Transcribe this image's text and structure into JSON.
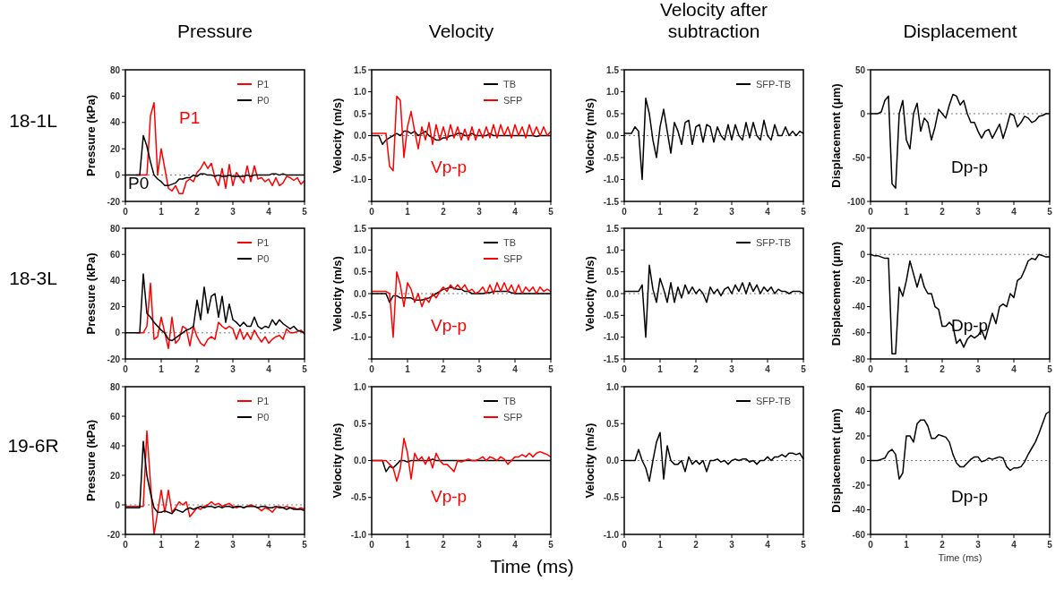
{
  "chart_data": [
    {
      "type": "line",
      "title": "Pressure",
      "ylabel": "Pressure (kPa)",
      "annotations": [
        "18-1L",
        "P0",
        "P1"
      ],
      "x": [
        0,
        0.1,
        0.2,
        0.3,
        0.4,
        0.5,
        0.6,
        0.7,
        0.8,
        0.9,
        1,
        1.1,
        1.2,
        1.3,
        1.4,
        1.5,
        1.6,
        1.7,
        1.8,
        1.9,
        2,
        2.1,
        2.2,
        2.3,
        2.4,
        2.5,
        2.6,
        2.7,
        2.8,
        2.9,
        3,
        3.1,
        3.2,
        3.3,
        3.4,
        3.5,
        3.6,
        3.7,
        3.8,
        3.9,
        4,
        4.1,
        4.2,
        4.3,
        4.4,
        4.5,
        4.6,
        4.7,
        4.8,
        4.9,
        5
      ],
      "xlim": [
        0,
        5
      ],
      "xticks": [
        0,
        1,
        2,
        3,
        4,
        5
      ],
      "ylim": [
        -20,
        80
      ],
      "yticks": [
        -20,
        0,
        20,
        40,
        60,
        80
      ],
      "legend": "top right",
      "ref_lines": [
        {
          "axis": "y",
          "value": 0,
          "line_style": "dotted"
        }
      ],
      "series": [
        {
          "name": "P1",
          "color": "#ff0000",
          "values": [
            null,
            null,
            null,
            0,
            0,
            0,
            0,
            45,
            55,
            0,
            20,
            5,
            -10,
            -12,
            -8,
            -14,
            -14,
            -5,
            -3,
            -5,
            2,
            5,
            10,
            5,
            9,
            -2,
            -8,
            5,
            -10,
            8,
            -8,
            2,
            -2,
            -6,
            7,
            -5,
            7,
            -3,
            -2,
            -5,
            -3,
            -8,
            -2,
            -8,
            -6,
            -1,
            -2,
            -4,
            -2,
            -7,
            -4
          ]
        },
        {
          "name": "P0",
          "color": "#000000",
          "values": [
            0,
            0,
            0,
            0,
            0,
            30,
            22,
            10,
            0,
            -3,
            -5,
            -8,
            -8,
            -7,
            -6,
            -3,
            -3,
            -2,
            -2,
            0,
            -1,
            1,
            1,
            0,
            0,
            -1,
            0,
            -1,
            -1,
            0,
            -1,
            -1,
            -1,
            -1,
            0,
            -1,
            0,
            0,
            0,
            0,
            0,
            1,
            1,
            0,
            1,
            0,
            0,
            0,
            0,
            0,
            0
          ]
        }
      ]
    },
    {
      "type": "line",
      "title": "Velocity",
      "ylabel": "Velocity (m/s)",
      "annotations": [
        "Vp-p"
      ],
      "x": [
        0,
        0.1,
        0.2,
        0.3,
        0.4,
        0.5,
        0.6,
        0.7,
        0.8,
        0.9,
        1,
        1.1,
        1.2,
        1.3,
        1.4,
        1.5,
        1.6,
        1.7,
        1.8,
        1.9,
        2,
        2.1,
        2.2,
        2.3,
        2.4,
        2.5,
        2.6,
        2.7,
        2.8,
        2.9,
        3,
        3.1,
        3.2,
        3.3,
        3.4,
        3.5,
        3.6,
        3.7,
        3.8,
        3.9,
        4,
        4.1,
        4.2,
        4.3,
        4.4,
        4.5,
        4.6,
        4.7,
        4.8,
        4.9,
        5
      ],
      "xlim": [
        0,
        5
      ],
      "xticks": [
        0,
        1,
        2,
        3,
        4,
        5
      ],
      "ylim": [
        -1.5,
        1.5
      ],
      "yticks": [
        {
          "value": -1.5,
          "label": null
        },
        {
          "value": -1,
          "label": "-1.0"
        },
        {
          "value": -0.5,
          "label": "-0.5"
        },
        {
          "value": 0,
          "label": "0.0"
        },
        {
          "value": 0.5,
          "label": "0.5"
        },
        {
          "value": 1,
          "label": "1.0"
        },
        {
          "value": 1.5,
          "label": "1.5"
        }
      ],
      "legend": "top right",
      "ref_lines": [
        {
          "axis": "y",
          "value": 0,
          "line_style": "dotted"
        }
      ],
      "series": [
        {
          "name": "TB",
          "color": "#000000",
          "values": [
            0,
            0,
            0,
            -0.2,
            -0.1,
            -0.05,
            0,
            0.05,
            0,
            0.1,
            0.1,
            0.05,
            0.1,
            0,
            0.05,
            0.1,
            0,
            -0.05,
            -0.1,
            -0.1,
            -0.05,
            -0.05,
            0,
            0,
            0.05,
            0.05,
            0,
            0,
            0.05,
            0,
            0,
            0,
            0,
            0.05,
            0,
            0,
            0,
            0,
            0,
            0,
            0,
            0,
            0,
            0,
            0,
            0,
            -0.02,
            0,
            0,
            0,
            0
          ]
        },
        {
          "name": "SFP",
          "color": "#ff0000",
          "values": [
            0.05,
            0.05,
            0.05,
            0.05,
            0.05,
            -0.7,
            -0.8,
            0.9,
            0.8,
            -0.5,
            0.2,
            0.55,
            0.1,
            -0.3,
            0.2,
            -0.1,
            0.3,
            -0.2,
            0.25,
            -0.1,
            0.2,
            -0.1,
            0.25,
            -0.05,
            0.2,
            -0.1,
            0.15,
            -0.1,
            0.2,
            -0.1,
            0.15,
            -0.05,
            0.2,
            -0.05,
            0.25,
            -0.05,
            0.25,
            0,
            0.2,
            -0.05,
            0.25,
            0,
            0.2,
            -0.05,
            0.25,
            0,
            0.2,
            0,
            0.2,
            0,
            0.1
          ]
        }
      ]
    },
    {
      "type": "line",
      "title": "Velocity after subtraction",
      "ylabel": "Velocity (m/s)",
      "x": [
        0,
        0.1,
        0.2,
        0.3,
        0.4,
        0.5,
        0.6,
        0.7,
        0.8,
        0.9,
        1,
        1.1,
        1.2,
        1.3,
        1.4,
        1.5,
        1.6,
        1.7,
        1.8,
        1.9,
        2,
        2.1,
        2.2,
        2.3,
        2.4,
        2.5,
        2.6,
        2.7,
        2.8,
        2.9,
        3,
        3.1,
        3.2,
        3.3,
        3.4,
        3.5,
        3.6,
        3.7,
        3.8,
        3.9,
        4,
        4.1,
        4.2,
        4.3,
        4.4,
        4.5,
        4.6,
        4.7,
        4.8,
        4.9,
        5
      ],
      "xlim": [
        0,
        5
      ],
      "xticks": [
        0,
        1,
        2,
        3,
        4,
        5
      ],
      "ylim": [
        -1.5,
        1.5
      ],
      "yticks": [
        {
          "value": -1.5,
          "label": "-1.5"
        },
        {
          "value": -1,
          "label": "-1.0"
        },
        {
          "value": -0.5,
          "label": "-0.5"
        },
        {
          "value": 0,
          "label": "0.0"
        },
        {
          "value": 0.5,
          "label": "0.5"
        },
        {
          "value": 1,
          "label": "1.0"
        },
        {
          "value": 1.5,
          "label": "1.5"
        }
      ],
      "legend": "top right",
      "ref_lines": [
        {
          "axis": "y",
          "value": 0,
          "line_style": "dotted"
        }
      ],
      "series": [
        {
          "name": "SFP-TB",
          "color": "#000000",
          "values": [
            0.05,
            0.05,
            0.05,
            0.2,
            0.1,
            -1,
            0.85,
            0.5,
            -0.1,
            -0.5,
            0.2,
            0.6,
            0.1,
            -0.4,
            0.3,
            0.1,
            -0.2,
            0.3,
            0.35,
            -0.2,
            0.2,
            0.25,
            -0.15,
            0.25,
            0.2,
            -0.15,
            0.2,
            0,
            -0.1,
            0.25,
            -0.1,
            0.25,
            0,
            -0.1,
            0.3,
            -0.05,
            0.3,
            0,
            -0.1,
            0.35,
            0,
            -0.1,
            0.25,
            0,
            0,
            0.2,
            0,
            0.1,
            0,
            0.1,
            0.05
          ]
        }
      ]
    },
    {
      "type": "line",
      "title": "Displacement",
      "ylabel": "Displacement (μm)",
      "annotations": [
        "Dp-p"
      ],
      "x": [
        0,
        0.1,
        0.2,
        0.3,
        0.4,
        0.5,
        0.6,
        0.7,
        0.8,
        0.9,
        1,
        1.1,
        1.2,
        1.3,
        1.4,
        1.5,
        1.6,
        1.7,
        1.8,
        1.9,
        2,
        2.1,
        2.2,
        2.3,
        2.4,
        2.5,
        2.6,
        2.7,
        2.8,
        2.9,
        3,
        3.1,
        3.2,
        3.3,
        3.4,
        3.5,
        3.6,
        3.7,
        3.8,
        3.9,
        4,
        4.1,
        4.2,
        4.3,
        4.4,
        4.5,
        4.6,
        4.7,
        4.8,
        4.9,
        5
      ],
      "xlim": [
        0,
        5
      ],
      "xticks": [
        0,
        1,
        2,
        3,
        4,
        5
      ],
      "ylim": [
        -100,
        50
      ],
      "yticks": [
        -100,
        -50,
        0,
        50
      ],
      "ref_lines": [
        {
          "axis": "y",
          "value": 0,
          "line_style": "dotted"
        }
      ],
      "series": [
        {
          "color": "#000000",
          "values": [
            0,
            0,
            0,
            2,
            15,
            20,
            -80,
            -85,
            0,
            15,
            -30,
            -40,
            0,
            12,
            -20,
            -5,
            -10,
            -30,
            -15,
            5,
            0,
            -5,
            10,
            22,
            20,
            10,
            15,
            0,
            -10,
            -10,
            -20,
            -28,
            -20,
            -18,
            -28,
            -20,
            -12,
            -28,
            -15,
            0,
            -2,
            -15,
            -10,
            -3,
            -5,
            -10,
            -8,
            -3,
            -2,
            0,
            0
          ]
        }
      ]
    },
    {
      "type": "line",
      "ylabel": "Pressure (kPa)",
      "annotations": [
        "18-3L"
      ],
      "x": [
        0,
        0.1,
        0.2,
        0.3,
        0.4,
        0.5,
        0.6,
        0.7,
        0.8,
        0.9,
        1,
        1.1,
        1.2,
        1.3,
        1.4,
        1.5,
        1.6,
        1.7,
        1.8,
        1.9,
        2,
        2.1,
        2.2,
        2.3,
        2.4,
        2.5,
        2.6,
        2.7,
        2.8,
        2.9,
        3,
        3.1,
        3.2,
        3.3,
        3.4,
        3.5,
        3.6,
        3.7,
        3.8,
        3.9,
        4,
        4.1,
        4.2,
        4.3,
        4.4,
        4.5,
        4.6,
        4.7,
        4.8,
        4.9,
        5
      ],
      "xlim": [
        0,
        5
      ],
      "xticks": [
        0,
        1,
        2,
        3,
        4,
        5
      ],
      "ylim": [
        -20,
        80
      ],
      "yticks": [
        -20,
        0,
        20,
        40,
        60,
        80
      ],
      "legend": "top right",
      "ref_lines": [
        {
          "axis": "y",
          "value": 0,
          "line_style": "dotted"
        }
      ],
      "series": [
        {
          "name": "P1",
          "color": "#ff0000",
          "values": [
            null,
            null,
            null,
            0,
            0,
            0,
            5,
            38,
            -5,
            -3,
            12,
            0,
            -12,
            12,
            -8,
            -5,
            5,
            3,
            -10,
            5,
            -3,
            -8,
            -10,
            -5,
            -3,
            -5,
            8,
            5,
            3,
            5,
            3,
            -5,
            3,
            -5,
            0,
            -5,
            2,
            -3,
            -7,
            -3,
            -8,
            -5,
            -3,
            -2,
            -5,
            3,
            0,
            0,
            1,
            2,
            -1
          ]
        },
        {
          "name": "P0",
          "color": "#000000",
          "values": [
            0,
            0,
            0,
            0,
            0,
            45,
            15,
            12,
            8,
            5,
            2,
            0,
            -5,
            -6,
            -4,
            -2,
            0,
            2,
            3,
            5,
            25,
            10,
            35,
            15,
            28,
            30,
            12,
            28,
            8,
            22,
            10,
            8,
            5,
            8,
            5,
            5,
            12,
            5,
            3,
            5,
            4,
            10,
            6,
            10,
            7,
            5,
            3,
            5,
            2,
            1,
            0
          ]
        }
      ]
    },
    {
      "type": "line",
      "ylabel": "Velocity (m/s)",
      "annotations": [
        "Vp-p"
      ],
      "x": [
        0,
        0.1,
        0.2,
        0.3,
        0.4,
        0.5,
        0.6,
        0.7,
        0.8,
        0.9,
        1,
        1.1,
        1.2,
        1.3,
        1.4,
        1.5,
        1.6,
        1.7,
        1.8,
        1.9,
        2,
        2.1,
        2.2,
        2.3,
        2.4,
        2.5,
        2.6,
        2.7,
        2.8,
        2.9,
        3,
        3.1,
        3.2,
        3.3,
        3.4,
        3.5,
        3.6,
        3.7,
        3.8,
        3.9,
        4,
        4.1,
        4.2,
        4.3,
        4.4,
        4.5,
        4.6,
        4.7,
        4.8,
        4.9,
        5
      ],
      "xlim": [
        0,
        5
      ],
      "xticks": [
        0,
        1,
        2,
        3,
        4,
        5
      ],
      "ylim": [
        -1.5,
        1.5
      ],
      "yticks": [
        {
          "value": -1.5,
          "label": null
        },
        {
          "value": -1,
          "label": "-1.0"
        },
        {
          "value": -0.5,
          "label": "-0.5"
        },
        {
          "value": 0,
          "label": "0.0"
        },
        {
          "value": 0.5,
          "label": "0.5"
        },
        {
          "value": 1,
          "label": "1.0"
        },
        {
          "value": 1.5,
          "label": "1.5"
        }
      ],
      "legend": "top right",
      "ref_lines": [
        {
          "axis": "y",
          "value": 0,
          "line_style": "dotted"
        }
      ],
      "series": [
        {
          "name": "TB",
          "color": "#000000",
          "values": [
            0,
            0,
            0,
            0,
            0,
            -0.2,
            -0.05,
            -0.05,
            -0.1,
            -0.1,
            -0.1,
            -0.1,
            -0.15,
            -0.15,
            -0.15,
            -0.12,
            -0.1,
            -0.05,
            0,
            0.05,
            0.1,
            0.12,
            0.15,
            0.12,
            0.1,
            0.1,
            0.05,
            0.05,
            0,
            0,
            0,
            0,
            0.02,
            0.02,
            0.05,
            0.05,
            0.05,
            0.05,
            0.05,
            0.02,
            0,
            0,
            0,
            0,
            0,
            0,
            0,
            0,
            0,
            0,
            0
          ]
        },
        {
          "name": "SFP",
          "color": "#ff0000",
          "values": [
            0.05,
            0.05,
            0.05,
            0.05,
            0.05,
            0,
            -1,
            0.5,
            0.2,
            -0.3,
            0.25,
            0.1,
            -0.2,
            0,
            -0.3,
            -0.1,
            -0.2,
            0,
            -0.1,
            0.05,
            0.15,
            0.05,
            0.2,
            0.1,
            0.2,
            0.1,
            0.2,
            0.05,
            0.1,
            0,
            0.05,
            0.15,
            0,
            0.2,
            0,
            0.25,
            0.05,
            0.25,
            0.05,
            0.2,
            0,
            0.2,
            0,
            0.15,
            0.05,
            0.15,
            0,
            0.15,
            0.05,
            0.1,
            0.05
          ]
        }
      ]
    },
    {
      "type": "line",
      "ylabel": "Velocity (m/s)",
      "x": [
        0,
        0.1,
        0.2,
        0.3,
        0.4,
        0.5,
        0.6,
        0.7,
        0.8,
        0.9,
        1,
        1.1,
        1.2,
        1.3,
        1.4,
        1.5,
        1.6,
        1.7,
        1.8,
        1.9,
        2,
        2.1,
        2.2,
        2.3,
        2.4,
        2.5,
        2.6,
        2.7,
        2.8,
        2.9,
        3,
        3.1,
        3.2,
        3.3,
        3.4,
        3.5,
        3.6,
        3.7,
        3.8,
        3.9,
        4,
        4.1,
        4.2,
        4.3,
        4.4,
        4.5,
        4.6,
        4.7,
        4.8,
        4.9,
        5
      ],
      "xlim": [
        0,
        5
      ],
      "xticks": [
        0,
        1,
        2,
        3,
        4,
        5
      ],
      "ylim": [
        -1.5,
        1.5
      ],
      "yticks": [
        {
          "value": -1.5,
          "label": "-1.5"
        },
        {
          "value": -1,
          "label": "-1.0"
        },
        {
          "value": -0.5,
          "label": "-0.5"
        },
        {
          "value": 0,
          "label": "0.0"
        },
        {
          "value": 0.5,
          "label": "0.5"
        },
        {
          "value": 1,
          "label": "1.0"
        },
        {
          "value": 1.5,
          "label": "1.5"
        }
      ],
      "legend": "top right",
      "ref_lines": [
        {
          "axis": "y",
          "value": 0,
          "line_style": "dotted"
        }
      ],
      "series": [
        {
          "name": "SFP-TB",
          "color": "#000000",
          "values": [
            0.05,
            0.05,
            0.05,
            0.05,
            0.05,
            0.2,
            -1,
            0.65,
            0.1,
            -0.2,
            0.35,
            0.1,
            -0.2,
            0.25,
            -0.2,
            0.15,
            -0.1,
            0.2,
            0,
            0.15,
            0,
            0.1,
            0,
            -0.2,
            0.15,
            0,
            0.1,
            -0.05,
            0.1,
            0.15,
            0,
            0.2,
            0.05,
            0.25,
            0,
            0.25,
            0.05,
            0.2,
            0,
            0.15,
            0.05,
            0.15,
            0,
            0.1,
            0.05,
            0.05,
            0,
            0.05,
            0.05,
            0.05,
            0
          ]
        }
      ]
    },
    {
      "type": "line",
      "ylabel": "Displacement (μm)",
      "annotations": [
        "Dp-p"
      ],
      "x": [
        0,
        0.1,
        0.2,
        0.3,
        0.4,
        0.5,
        0.6,
        0.7,
        0.8,
        0.9,
        1,
        1.1,
        1.2,
        1.3,
        1.4,
        1.5,
        1.6,
        1.7,
        1.8,
        1.9,
        2,
        2.1,
        2.2,
        2.3,
        2.4,
        2.5,
        2.6,
        2.7,
        2.8,
        2.9,
        3,
        3.1,
        3.2,
        3.3,
        3.4,
        3.5,
        3.6,
        3.7,
        3.8,
        3.9,
        4,
        4.1,
        4.2,
        4.3,
        4.4,
        4.5,
        4.6,
        4.7,
        4.8,
        4.9,
        5
      ],
      "xlim": [
        0,
        5
      ],
      "xticks": [
        0,
        1,
        2,
        3,
        4,
        5
      ],
      "ylim": [
        -80,
        20
      ],
      "yticks": [
        -80,
        -60,
        -40,
        -20,
        0,
        20
      ],
      "ref_lines": [
        {
          "axis": "y",
          "value": 0,
          "line_style": "dotted"
        }
      ],
      "series": [
        {
          "color": "#000000",
          "values": [
            0,
            -1,
            -1,
            -2,
            -3,
            -3,
            -76,
            -76,
            -25,
            -32,
            -20,
            -5,
            -15,
            -25,
            -15,
            -25,
            -30,
            -30,
            -40,
            -42,
            -55,
            -55,
            -52,
            -55,
            -68,
            -65,
            -71,
            -65,
            -62,
            -64,
            -62,
            -58,
            -65,
            -55,
            -45,
            -53,
            -40,
            -38,
            -40,
            -30,
            -33,
            -20,
            -18,
            -12,
            -5,
            -3,
            -4,
            0,
            -1,
            -2,
            -2
          ]
        }
      ]
    },
    {
      "type": "line",
      "ylabel": "Pressure (kPa)",
      "annotations": [
        "19-6R",
        "Time (ms)"
      ],
      "x": [
        0,
        0.1,
        0.2,
        0.3,
        0.4,
        0.5,
        0.6,
        0.7,
        0.8,
        0.9,
        1,
        1.1,
        1.2,
        1.3,
        1.4,
        1.5,
        1.6,
        1.7,
        1.8,
        1.9,
        2,
        2.1,
        2.2,
        2.3,
        2.4,
        2.5,
        2.6,
        2.7,
        2.8,
        2.9,
        3,
        3.1,
        3.2,
        3.3,
        3.4,
        3.5,
        3.6,
        3.7,
        3.8,
        3.9,
        4,
        4.1,
        4.2,
        4.3,
        4.4,
        4.5,
        4.6,
        4.7,
        4.8,
        4.9,
        5
      ],
      "xlim": [
        0,
        5
      ],
      "xticks": [
        0,
        1,
        2,
        3,
        4,
        5
      ],
      "ylim": [
        -20,
        80
      ],
      "yticks": [
        -20,
        0,
        20,
        40,
        60,
        80
      ],
      "legend": "top right",
      "ref_lines": [
        {
          "axis": "y",
          "value": 0,
          "line_style": "dotted"
        }
      ],
      "series": [
        {
          "name": "P1",
          "color": "#ff0000",
          "values": [
            -1,
            -1,
            -1,
            -1,
            -1,
            -1,
            50,
            15,
            -20,
            -5,
            10,
            -5,
            10,
            -5,
            -2,
            2,
            0,
            2,
            -8,
            -5,
            -2,
            -3,
            -1,
            0,
            2,
            0,
            1,
            -1,
            0,
            1,
            -1,
            -2,
            -1,
            -2,
            -1,
            0,
            -1,
            -2,
            -4,
            -2,
            -3,
            -5,
            -2,
            -1,
            -2,
            -1,
            -2,
            -2,
            -3,
            -2,
            -3
          ]
        },
        {
          "name": "P0",
          "color": "#000000",
          "values": [
            -2,
            -2,
            -2,
            -2,
            -2,
            43,
            20,
            8,
            -2,
            -5,
            -5,
            -4,
            -5,
            -6,
            -3,
            -4,
            -5,
            -3,
            -2,
            -3,
            -2,
            -1,
            -2,
            -1,
            -1,
            -2,
            -1,
            -2,
            -1,
            -1,
            -2,
            -1,
            -1,
            -2,
            -1,
            -1,
            -1,
            -2,
            -1,
            -1,
            -2,
            -2,
            -1,
            -2,
            -2,
            -3,
            -2,
            -3,
            -3,
            -3,
            -4
          ]
        }
      ]
    },
    {
      "type": "line",
      "ylabel": "Velocity (m/s)",
      "annotations": [
        "Vp-p"
      ],
      "x": [
        0,
        0.1,
        0.2,
        0.3,
        0.4,
        0.5,
        0.6,
        0.7,
        0.8,
        0.9,
        1,
        1.1,
        1.2,
        1.3,
        1.4,
        1.5,
        1.6,
        1.7,
        1.8,
        1.9,
        2,
        2.1,
        2.2,
        2.3,
        2.4,
        2.5,
        2.6,
        2.7,
        2.8,
        2.9,
        3,
        3.1,
        3.2,
        3.3,
        3.4,
        3.5,
        3.6,
        3.7,
        3.8,
        3.9,
        4,
        4.1,
        4.2,
        4.3,
        4.4,
        4.5,
        4.6,
        4.7,
        4.8,
        4.9,
        5
      ],
      "xlim": [
        0,
        5
      ],
      "xticks": [
        0,
        1,
        2,
        3,
        4,
        5
      ],
      "ylim": [
        -1,
        1
      ],
      "yticks": [
        {
          "value": -1,
          "label": "-1.0"
        },
        {
          "value": -0.5,
          "label": "-0.5"
        },
        {
          "value": 0,
          "label": "0.0"
        },
        {
          "value": 0.5,
          "label": "0.5"
        },
        {
          "value": 1,
          "label": "1.0"
        }
      ],
      "legend": "top right",
      "ref_lines": [
        {
          "axis": "y",
          "value": 0,
          "line_style": "dotted"
        }
      ],
      "series": [
        {
          "name": "TB",
          "color": "#000000",
          "values": [
            0,
            0,
            0,
            0,
            -0.15,
            -0.08,
            -0.1,
            -0.05,
            0,
            0,
            -0.02,
            0,
            0,
            0,
            0,
            0,
            0,
            0.02,
            0,
            0,
            0,
            0,
            0,
            0,
            0,
            0,
            0,
            0,
            0,
            0,
            0,
            0,
            0,
            0,
            0,
            0,
            0,
            0,
            0,
            0,
            0,
            0,
            0,
            0,
            0,
            0,
            0,
            0,
            0,
            0,
            0
          ]
        },
        {
          "name": "SFP",
          "color": "#ff0000",
          "values": [
            0,
            0,
            0,
            0,
            0,
            -0.05,
            -0.1,
            -0.28,
            -0.1,
            0.3,
            0.1,
            -0.25,
            0.1,
            0,
            0.05,
            -0.05,
            0.05,
            -0.1,
            0.1,
            0,
            -0.05,
            -0.05,
            -0.1,
            -0.15,
            0,
            -0.02,
            0,
            0.02,
            0,
            0,
            0.02,
            0.05,
            0,
            0.05,
            0.03,
            0,
            0.05,
            0.02,
            -0.05,
            0,
            0.05,
            0.05,
            0.08,
            0.05,
            0.1,
            0.05,
            0.1,
            0.12,
            0.1,
            0.08,
            0.05
          ]
        }
      ]
    },
    {
      "type": "line",
      "ylabel": "Velocity (m/s)",
      "x": [
        0,
        0.1,
        0.2,
        0.3,
        0.4,
        0.5,
        0.6,
        0.7,
        0.8,
        0.9,
        1,
        1.1,
        1.2,
        1.3,
        1.4,
        1.5,
        1.6,
        1.7,
        1.8,
        1.9,
        2,
        2.1,
        2.2,
        2.3,
        2.4,
        2.5,
        2.6,
        2.7,
        2.8,
        2.9,
        3,
        3.1,
        3.2,
        3.3,
        3.4,
        3.5,
        3.6,
        3.7,
        3.8,
        3.9,
        4,
        4.1,
        4.2,
        4.3,
        4.4,
        4.5,
        4.6,
        4.7,
        4.8,
        4.9,
        5
      ],
      "xlim": [
        0,
        5
      ],
      "xticks": [
        0,
        1,
        2,
        3,
        4,
        5
      ],
      "ylim": [
        -1,
        1
      ],
      "yticks": [
        {
          "value": -1,
          "label": "-1.0"
        },
        {
          "value": -0.5,
          "label": "-0.5"
        },
        {
          "value": 0,
          "label": "0.0"
        },
        {
          "value": 0.5,
          "label": "0.5"
        },
        {
          "value": 1,
          "label": "1.0"
        }
      ],
      "legend": "top right",
      "ref_lines": [
        {
          "axis": "y",
          "value": 0,
          "line_style": "dotted"
        }
      ],
      "series": [
        {
          "name": "SFP-TB",
          "color": "#000000",
          "values": [
            0,
            0,
            0,
            0,
            0.15,
            0,
            -0.1,
            -0.28,
            0,
            0.25,
            0.38,
            -0.25,
            0.2,
            0,
            -0.05,
            -0.05,
            0,
            -0.15,
            0.05,
            -0.05,
            0,
            -0.05,
            0,
            -0.15,
            0,
            0,
            0.02,
            -0.02,
            0,
            -0.05,
            0,
            0.02,
            0,
            0.02,
            0.02,
            -0.02,
            0,
            -0.05,
            0,
            0,
            0.05,
            0,
            0.05,
            0.05,
            0.08,
            0.05,
            0.1,
            0.1,
            0.08,
            0.1,
            0.02
          ]
        }
      ]
    },
    {
      "type": "line",
      "ylabel": "Displacement (μm)",
      "xlabel": "Time (ms)",
      "annotations": [
        "Dp-p"
      ],
      "x": [
        0,
        0.1,
        0.2,
        0.3,
        0.4,
        0.5,
        0.6,
        0.7,
        0.8,
        0.9,
        1,
        1.1,
        1.2,
        1.3,
        1.4,
        1.5,
        1.6,
        1.7,
        1.8,
        1.9,
        2,
        2.1,
        2.2,
        2.3,
        2.4,
        2.5,
        2.6,
        2.7,
        2.8,
        2.9,
        3,
        3.1,
        3.2,
        3.3,
        3.4,
        3.5,
        3.6,
        3.7,
        3.8,
        3.9,
        4,
        4.1,
        4.2,
        4.3,
        4.4,
        4.5,
        4.6,
        4.7,
        4.8,
        4.9,
        5
      ],
      "xlim": [
        0,
        5
      ],
      "xticks": [
        0,
        1,
        2,
        3,
        4,
        5
      ],
      "ylim": [
        -60,
        60
      ],
      "yticks": [
        -60,
        -40,
        -20,
        0,
        20,
        40,
        60
      ],
      "ref_lines": [
        {
          "axis": "y",
          "value": 0,
          "line_style": "dotted"
        }
      ],
      "series": [
        {
          "color": "#000000",
          "values": [
            0,
            0,
            0,
            1,
            2,
            7,
            9,
            5,
            -15,
            -10,
            20,
            20,
            15,
            30,
            33,
            33,
            28,
            18,
            18,
            21,
            20,
            19,
            15,
            5,
            -2,
            -5,
            -5,
            -2,
            1,
            3,
            3,
            -1,
            0,
            2,
            1,
            2,
            3,
            2,
            -5,
            -8,
            -6,
            -6,
            -5,
            -1,
            5,
            10,
            15,
            22,
            30,
            38,
            40
          ]
        }
      ]
    }
  ]
}
